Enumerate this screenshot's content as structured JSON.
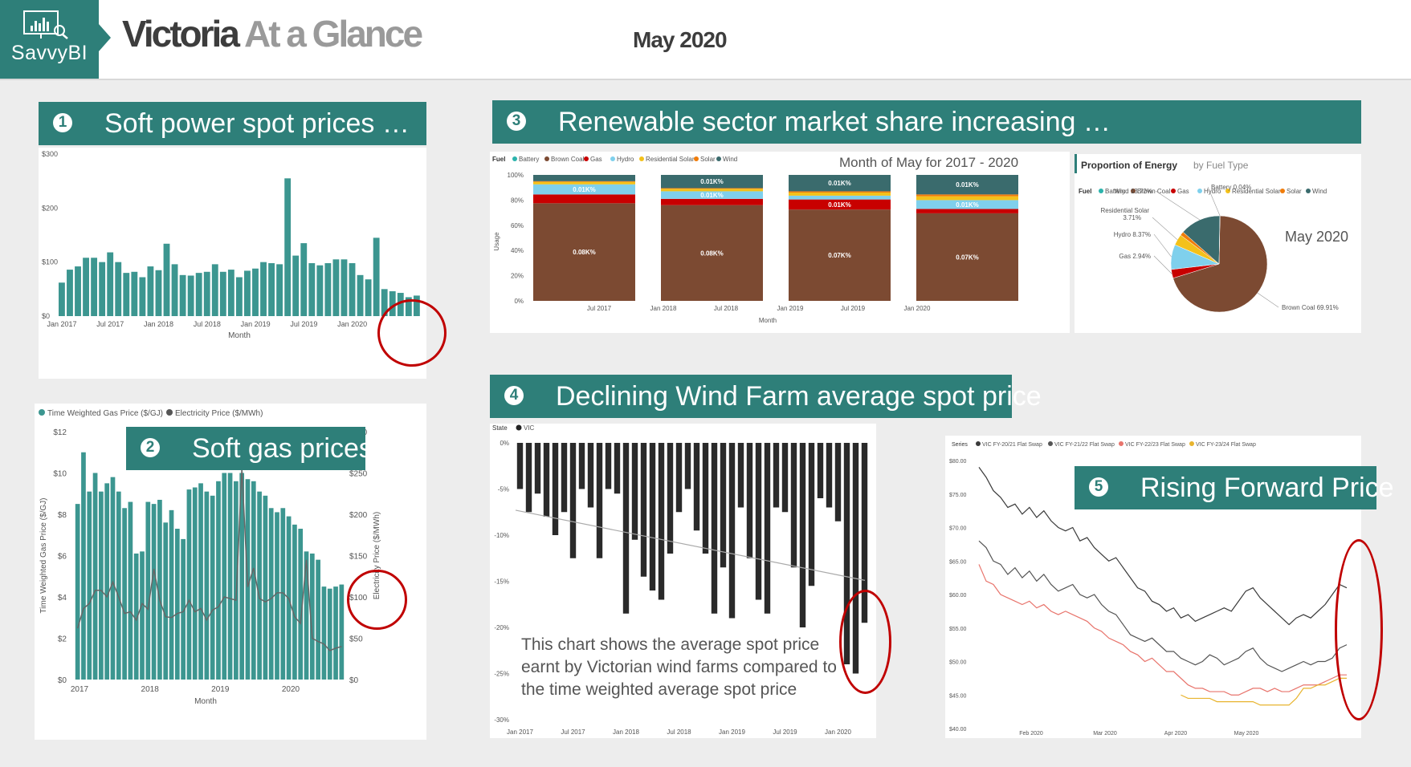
{
  "header": {
    "logo_text": "SavvyBI",
    "title_part1": "Victoria",
    "title_part2": "At a Glance",
    "month": "May 2020"
  },
  "panels": {
    "p1": {
      "num": "1",
      "title": "Soft power spot prices …"
    },
    "p2": {
      "num": "2",
      "title": "Soft gas prices"
    },
    "p3": {
      "num": "3",
      "title": "Renewable sector market share increasing …"
    },
    "p4": {
      "num": "4",
      "title": "Declining Wind Farm average spot price"
    },
    "p5": {
      "num": "5",
      "title": "Rising Forward Price"
    }
  },
  "colors": {
    "teal": "#2e7f79",
    "bar_teal": "#3c9690",
    "alert": "#c00000"
  },
  "chart_data": [
    {
      "id": "spot",
      "type": "bar",
      "xlabel": "Month",
      "ylabel": "",
      "ylim": [
        0,
        300
      ],
      "yticks": [
        "$0",
        "$100",
        "$200",
        "$300"
      ],
      "xticks": [
        "Jan 2017",
        "Jul 2017",
        "Jan 2018",
        "Jul 2018",
        "Jan 2019",
        "Jul 2019",
        "Jan 2020"
      ],
      "color": "#3c9690",
      "values": [
        62,
        86,
        92,
        108,
        108,
        100,
        118,
        100,
        80,
        82,
        72,
        92,
        85,
        134,
        96,
        76,
        75,
        80,
        82,
        96,
        82,
        86,
        72,
        84,
        88,
        100,
        98,
        96,
        255,
        112,
        135,
        98,
        94,
        98,
        105,
        105,
        98,
        76,
        68,
        145,
        50,
        46,
        43,
        35,
        38
      ]
    },
    {
      "id": "gas",
      "type": "bar",
      "title": "",
      "xlabel": "Month",
      "ylabel": "Time Weighted Gas Price ($/GJ)",
      "y2label": "Electricity Price ($/MWh)",
      "ylim": [
        0,
        12
      ],
      "y2lim": [
        0,
        300
      ],
      "yticks": [
        "$0",
        "$2",
        "$4",
        "$6",
        "$8",
        "$10",
        "$12"
      ],
      "y2ticks": [
        "$0",
        "$50",
        "$100",
        "$150",
        "$200",
        "$250",
        "$300"
      ],
      "xticks": [
        "2017",
        "2018",
        "2019",
        "2020"
      ],
      "legend": [
        "Time Weighted Gas Price ($/GJ)",
        "Electricity Price ($/MWh)"
      ],
      "series": [
        {
          "name": "Time Weighted Gas Price ($/GJ)",
          "values": [
            8.5,
            11,
            9.1,
            10,
            9.1,
            9.5,
            9.8,
            9.1,
            8.3,
            8.6,
            6.1,
            6.2,
            8.6,
            8.5,
            8.7,
            7.6,
            8.2,
            7.3,
            6.8,
            9.2,
            9.3,
            9.5,
            9.1,
            8.9,
            9.6,
            10,
            10,
            9.6,
            10,
            9.7,
            9.6,
            9.1,
            8.9,
            8.3,
            8.1,
            8.3,
            7.9,
            7.5,
            7.3,
            6.2,
            6.1,
            5.8,
            4.5,
            4.4,
            4.5,
            4.6
          ]
        },
        {
          "name": "Electricity Price ($/MWh)",
          "values": [
            62,
            86,
            92,
            108,
            108,
            100,
            118,
            100,
            80,
            82,
            72,
            92,
            85,
            134,
            96,
            76,
            75,
            80,
            82,
            96,
            82,
            86,
            72,
            84,
            88,
            100,
            98,
            96,
            255,
            112,
            135,
            98,
            94,
            98,
            105,
            105,
            98,
            76,
            68,
            145,
            50,
            46,
            43,
            35,
            38,
            40
          ]
        }
      ]
    },
    {
      "id": "mix",
      "type": "bar",
      "title": "Month of May for 2017 - 2020",
      "xlabel": "Month",
      "ylabel": "Usage",
      "legend_title": "Fuel",
      "yticks": [
        "0%",
        "20%",
        "40%",
        "60%",
        "80%",
        "100%"
      ],
      "xticks": [
        "Jul 2017",
        "Jan 2018",
        "Jul 2018",
        "Jan 2019",
        "Jul 2019",
        "Jan 2020"
      ],
      "fuels": [
        {
          "name": "Battery",
          "color": "#2bb3ac"
        },
        {
          "name": "Brown Coal",
          "color": "#7c4a32"
        },
        {
          "name": "Gas",
          "color": "#c80000"
        },
        {
          "name": "Hydro",
          "color": "#7fd0ec"
        },
        {
          "name": "Residential Solar",
          "color": "#f3c11a"
        },
        {
          "name": "Solar",
          "color": "#f07c0a"
        },
        {
          "name": "Wind",
          "color": "#3a6b6d"
        }
      ],
      "stacks": [
        {
          "Brown Coal": 0.775,
          "Gas": 0.07,
          "Hydro": 0.08,
          "Residential Solar": 0.02,
          "Solar": 0.005,
          "Wind": 0.05
        },
        {
          "Brown Coal": 0.76,
          "Gas": 0.05,
          "Hydro": 0.06,
          "Residential Solar": 0.02,
          "Solar": 0.005,
          "Wind": 0.105
        },
        {
          "Brown Coal": 0.725,
          "Gas": 0.08,
          "Hydro": 0.03,
          "Residential Solar": 0.025,
          "Solar": 0.01,
          "Wind": 0.13
        },
        {
          "Brown Coal": 0.695,
          "Gas": 0.035,
          "Hydro": 0.07,
          "Residential Solar": 0.03,
          "Solar": 0.015,
          "Wind": 0.155
        }
      ],
      "labels": [
        {
          "Brown Coal": "0.08K%",
          "Hydro": "0.01K%"
        },
        {
          "Brown Coal": "0.08K%",
          "Hydro": "0.01K%",
          "Wind": "0.01K%"
        },
        {
          "Brown Coal": "0.07K%",
          "Gas": "0.01K%",
          "Wind": "0.01K%"
        },
        {
          "Brown Coal": "0.07K%",
          "Hydro": "0.01K%",
          "Wind": "0.01K%"
        }
      ]
    },
    {
      "id": "pie",
      "type": "pie",
      "title": "Proportion of Energy",
      "subtitle": "by Fuel Type",
      "legend_title": "Fuel",
      "annotation": "May 2020",
      "slices": [
        {
          "name": "Brown Coal",
          "value": 69.91,
          "label": "Brown Coal 69.91%",
          "color": "#7c4a32"
        },
        {
          "name": "Gas",
          "value": 2.94,
          "label": "Gas 2.94%",
          "color": "#c80000"
        },
        {
          "name": "Hydro",
          "value": 8.37,
          "label": "Hydro 8.37%",
          "color": "#7fd0ec"
        },
        {
          "name": "Residential Solar",
          "value": 3.71,
          "label": "Residential Solar 3.71%",
          "color": "#f3c11a"
        },
        {
          "name": "Solar",
          "value": 1.31,
          "label": "",
          "color": "#f07c0a"
        },
        {
          "name": "Wind",
          "value": 13.72,
          "label": "Wind 13.72%",
          "color": "#3a6b6d"
        },
        {
          "name": "Battery",
          "value": 0.04,
          "label": "Battery 0.04%",
          "color": "#2bb3ac"
        }
      ]
    },
    {
      "id": "wind",
      "type": "bar",
      "legend_title": "State",
      "legend": [
        "VIC"
      ],
      "ylim": [
        -30,
        0
      ],
      "yticks": [
        "0%",
        "-5%",
        "-10%",
        "-15%",
        "-20%",
        "-25%",
        "-30%"
      ],
      "xticks": [
        "Jan 2017",
        "Jul 2017",
        "Jan 2018",
        "Jul 2018",
        "Jan 2019",
        "Jul 2019",
        "Jan 2020"
      ],
      "color": "#2a2a2a",
      "note": "This chart shows the average spot price earnt by Victorian wind farms compared to the time weighted average spot price",
      "values": [
        -5,
        -7.5,
        -5.5,
        -8,
        -10,
        -7.5,
        -12.5,
        -5,
        -7,
        -12.5,
        -5,
        -5.5,
        -18.5,
        -10.5,
        -14.5,
        -16,
        -17,
        -12,
        -7.5,
        -5,
        -9.5,
        -12,
        -18.5,
        -13.5,
        -19,
        -7,
        -12.5,
        -17,
        -18.5,
        -7,
        -7.5,
        -13.5,
        -20,
        -15.5,
        -6,
        -7,
        -8.5,
        -24,
        -25,
        -19.5
      ],
      "trend": [
        -7.3,
        -14.9
      ]
    },
    {
      "id": "forward",
      "type": "line",
      "legend_title": "Series",
      "ylim": [
        40,
        80
      ],
      "yticks": [
        "$40.00",
        "$45.00",
        "$50.00",
        "$55.00",
        "$60.00",
        "$65.00",
        "$70.00",
        "$75.00",
        "$80.00"
      ],
      "xticks": [
        "Feb 2020",
        "Mar 2020",
        "Apr 2020",
        "May 2020"
      ],
      "series": [
        {
          "name": "VIC FY-20/21 Flat Swap",
          "color": "#3a3a3a",
          "values": [
            79,
            77.5,
            75.5,
            74.5,
            73,
            73.5,
            72,
            73,
            71.5,
            72.5,
            71,
            70,
            69.5,
            70,
            68,
            68.5,
            67,
            66,
            65,
            65.5,
            64,
            62.5,
            61,
            60.5,
            59,
            58.5,
            57.5,
            58,
            56.5,
            57,
            56,
            56.5,
            57,
            57.5,
            58,
            57.5,
            59,
            60.5,
            61,
            59.5,
            58.5,
            57.5,
            56.5,
            55.5,
            56.5,
            57,
            56.5,
            57.5,
            58.5,
            60,
            61.5,
            61
          ]
        },
        {
          "name": "VIC FY-21/22 Flat Swap",
          "color": "#555555",
          "values": [
            68,
            67,
            65,
            64.5,
            63,
            64,
            62.5,
            63.5,
            62,
            63,
            61.5,
            60.5,
            61,
            61.5,
            60,
            59.5,
            60,
            58.5,
            57.5,
            57,
            55.5,
            54,
            53.5,
            53,
            53.5,
            52.5,
            51.5,
            51.5,
            50.5,
            50,
            49.5,
            50,
            51,
            50.5,
            49.5,
            50,
            50.5,
            51.5,
            52,
            50.5,
            49.5,
            49,
            48.5,
            49,
            49.5,
            50,
            49.5,
            50,
            50,
            50.5,
            52,
            52.5
          ]
        },
        {
          "name": "VIC FY-22/23 Flat Swap",
          "color": "#e8746c",
          "values": [
            64.5,
            62,
            61.5,
            60,
            59.5,
            59,
            58.5,
            59,
            58,
            58.5,
            57.5,
            57,
            57.5,
            57,
            56.5,
            56,
            55,
            54.5,
            53.5,
            53,
            52.5,
            51.5,
            51,
            50,
            50.5,
            49.5,
            48.5,
            48.5,
            47.5,
            46.5,
            46,
            46,
            45.5,
            45.5,
            45.5,
            45,
            45,
            45.5,
            46,
            46,
            45.5,
            46,
            45.5,
            45.5,
            46,
            46.5,
            46.5,
            46.5,
            47,
            47.5,
            48,
            48
          ]
        },
        {
          "name": "VIC FY-23/24 Flat Swap",
          "color": "#e8b42e",
          "values": [
            null,
            null,
            null,
            null,
            null,
            null,
            null,
            null,
            null,
            null,
            null,
            null,
            null,
            null,
            null,
            null,
            null,
            null,
            null,
            null,
            null,
            null,
            null,
            null,
            null,
            null,
            null,
            null,
            45,
            44.5,
            44.5,
            44.5,
            44.5,
            44,
            44,
            44,
            44,
            44,
            44,
            43.5,
            43.5,
            43.5,
            43.5,
            43.5,
            44.5,
            46,
            46,
            46.5,
            46.5,
            47,
            47.5,
            47.5
          ]
        }
      ]
    }
  ]
}
